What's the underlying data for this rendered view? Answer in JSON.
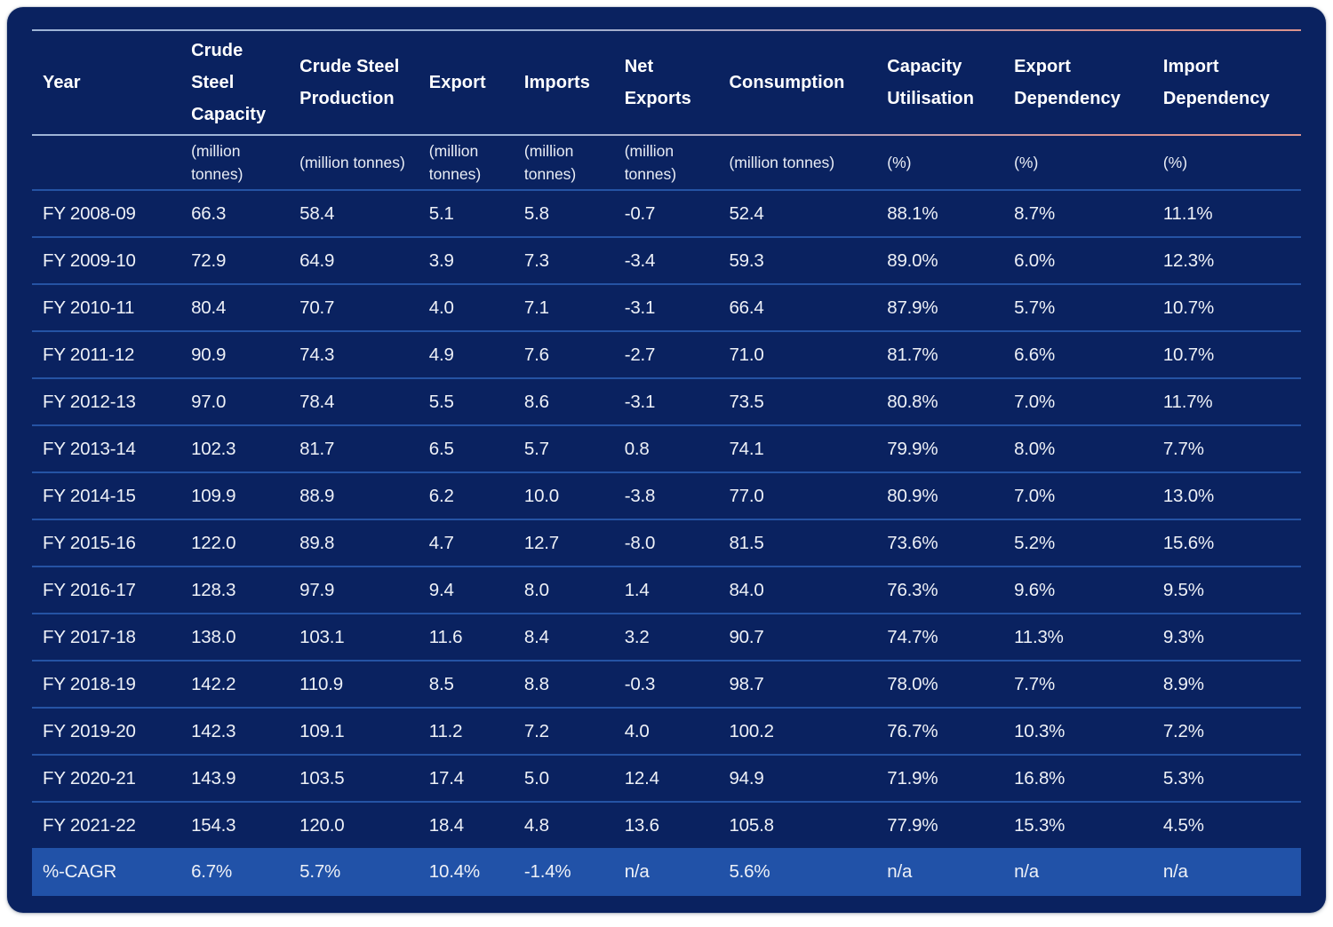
{
  "chart_data": {
    "type": "table",
    "columns": [
      {
        "label": "Year",
        "unit": ""
      },
      {
        "label": "Crude Steel Capacity",
        "unit": "(million tonnes)"
      },
      {
        "label": "Crude Steel Production",
        "unit": "(million tonnes)"
      },
      {
        "label": "Export",
        "unit": "(million tonnes)"
      },
      {
        "label": "Imports",
        "unit": "(million tonnes)"
      },
      {
        "label": "Net Exports",
        "unit": "(million tonnes)"
      },
      {
        "label": "Consumption",
        "unit": "(million tonnes)"
      },
      {
        "label": "Capacity Utilisation",
        "unit": "(%)"
      },
      {
        "label": "Export Dependency",
        "unit": "(%)"
      },
      {
        "label": "Import Dependency",
        "unit": "(%)"
      }
    ],
    "rows": [
      {
        "highlight": false,
        "cells": [
          "FY 2008-09",
          "66.3",
          "58.4",
          "5.1",
          "5.8",
          "-0.7",
          "52.4",
          "88.1%",
          "8.7%",
          "11.1%"
        ]
      },
      {
        "highlight": false,
        "cells": [
          "FY 2009-10",
          "72.9",
          "64.9",
          "3.9",
          "7.3",
          "-3.4",
          "59.3",
          "89.0%",
          "6.0%",
          "12.3%"
        ]
      },
      {
        "highlight": false,
        "cells": [
          "FY 2010-11",
          "80.4",
          "70.7",
          "4.0",
          "7.1",
          "-3.1",
          "66.4",
          "87.9%",
          "5.7%",
          "10.7%"
        ]
      },
      {
        "highlight": false,
        "cells": [
          "FY 2011-12",
          "90.9",
          "74.3",
          "4.9",
          "7.6",
          "-2.7",
          "71.0",
          "81.7%",
          "6.6%",
          "10.7%"
        ]
      },
      {
        "highlight": false,
        "cells": [
          "FY 2012-13",
          "97.0",
          "78.4",
          "5.5",
          "8.6",
          "-3.1",
          "73.5",
          "80.8%",
          "7.0%",
          "11.7%"
        ]
      },
      {
        "highlight": false,
        "cells": [
          "FY 2013-14",
          "102.3",
          "81.7",
          "6.5",
          "5.7",
          "0.8",
          "74.1",
          "79.9%",
          "8.0%",
          "7.7%"
        ]
      },
      {
        "highlight": false,
        "cells": [
          "FY 2014-15",
          "109.9",
          "88.9",
          "6.2",
          "10.0",
          "-3.8",
          "77.0",
          "80.9%",
          "7.0%",
          "13.0%"
        ]
      },
      {
        "highlight": false,
        "cells": [
          "FY 2015-16",
          "122.0",
          "89.8",
          "4.7",
          "12.7",
          "-8.0",
          "81.5",
          "73.6%",
          "5.2%",
          "15.6%"
        ]
      },
      {
        "highlight": false,
        "cells": [
          "FY 2016-17",
          "128.3",
          "97.9",
          "9.4",
          "8.0",
          "1.4",
          "84.0",
          "76.3%",
          "9.6%",
          "9.5%"
        ]
      },
      {
        "highlight": false,
        "cells": [
          "FY 2017-18",
          "138.0",
          "103.1",
          "11.6",
          "8.4",
          "3.2",
          "90.7",
          "74.7%",
          "11.3%",
          "9.3%"
        ]
      },
      {
        "highlight": false,
        "cells": [
          "FY 2018-19",
          "142.2",
          "110.9",
          "8.5",
          "8.8",
          "-0.3",
          "98.7",
          "78.0%",
          "7.7%",
          "8.9%"
        ]
      },
      {
        "highlight": false,
        "cells": [
          "FY 2019-20",
          "142.3",
          "109.1",
          "11.2",
          "7.2",
          "4.0",
          "100.2",
          "76.7%",
          "10.3%",
          "7.2%"
        ]
      },
      {
        "highlight": false,
        "cells": [
          "FY 2020-21",
          "143.9",
          "103.5",
          "17.4",
          "5.0",
          "12.4",
          "94.9",
          "71.9%",
          "16.8%",
          "5.3%"
        ]
      },
      {
        "highlight": false,
        "cells": [
          "FY 2021-22",
          "154.3",
          "120.0",
          "18.4",
          "4.8",
          "13.6",
          "105.8",
          "77.9%",
          "15.3%",
          "4.5%"
        ]
      },
      {
        "highlight": true,
        "cells": [
          "%-CAGR",
          "6.7%",
          "5.7%",
          "10.4%",
          "-1.4%",
          "n/a",
          "5.6%",
          "n/a",
          "n/a",
          "n/a"
        ]
      }
    ]
  },
  "colors": {
    "card_background": "#0a2260",
    "highlight_row": "#2152a8",
    "row_divider": "#2553a4",
    "rule_gradient_left": "#9eb4d6",
    "rule_gradient_right": "#db938d",
    "text": "#ffffff"
  }
}
